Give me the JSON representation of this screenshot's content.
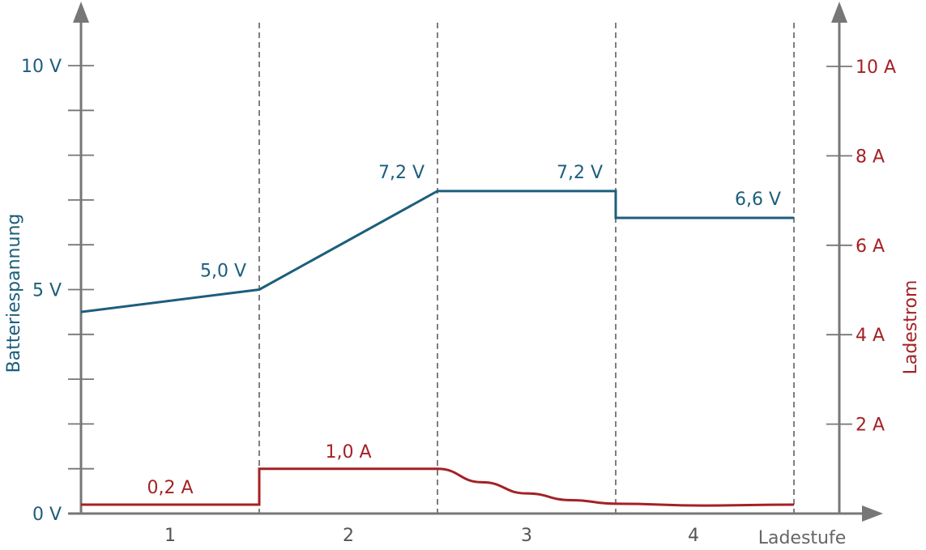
{
  "chart_data": {
    "type": "line",
    "xlabel": "Ladestufe",
    "ylabel_left": "Batteriespannung",
    "ylabel_right": "Ladestrom",
    "stages": [
      "1",
      "2",
      "3",
      "4"
    ],
    "y_left": {
      "unit": "V",
      "range": [
        0,
        10.5
      ],
      "tick_labels": [
        {
          "v": 0,
          "t": "0 V"
        },
        {
          "v": 5,
          "t": "5 V"
        },
        {
          "v": 10,
          "t": "10 V"
        }
      ],
      "minor_step": 1
    },
    "y_right": {
      "unit": "A",
      "range": [
        0,
        11
      ],
      "tick_labels": [
        {
          "v": 2,
          "t": "2 A"
        },
        {
          "v": 4,
          "t": "4 A"
        },
        {
          "v": 6,
          "t": "6 A"
        },
        {
          "v": 8,
          "t": "8 A"
        },
        {
          "v": 10,
          "t": "10 A"
        }
      ]
    },
    "stage_boundaries": [
      1,
      2,
      3,
      4
    ],
    "series": [
      {
        "name": "Batteriespannung",
        "axis": "left",
        "color": "#1c5e7c",
        "points": [
          [
            0,
            4.5
          ],
          [
            1,
            5.0
          ],
          [
            2,
            7.2
          ],
          [
            3,
            7.2
          ],
          [
            3,
            6.6
          ],
          [
            4,
            6.6
          ]
        ]
      },
      {
        "name": "Ladestrom",
        "axis": "right",
        "color": "#a42125",
        "points": [
          [
            0,
            0.2
          ],
          [
            1,
            0.2
          ],
          [
            1,
            1.0
          ],
          [
            2,
            1.0
          ],
          [
            2.25,
            0.7
          ],
          [
            2.5,
            0.45
          ],
          [
            2.75,
            0.3
          ],
          [
            3,
            0.22
          ],
          [
            3.5,
            0.18
          ],
          [
            4,
            0.2
          ]
        ]
      }
    ],
    "annotations": [
      {
        "series": "Batteriespannung",
        "x": 1,
        "y": 5.0,
        "text": "5,0 V"
      },
      {
        "series": "Batteriespannung",
        "x": 2,
        "y": 7.2,
        "text": "7,2 V"
      },
      {
        "series": "Batteriespannung",
        "x": 3,
        "y": 7.2,
        "text": "7,2 V"
      },
      {
        "series": "Batteriespannung",
        "x": 4,
        "y": 6.6,
        "text": "6,6 V"
      },
      {
        "series": "Ladestrom",
        "x": 0.5,
        "y": 0.2,
        "text": "0,2 A"
      },
      {
        "series": "Ladestrom",
        "x": 1.5,
        "y": 1.0,
        "text": "1,0 A"
      }
    ]
  }
}
